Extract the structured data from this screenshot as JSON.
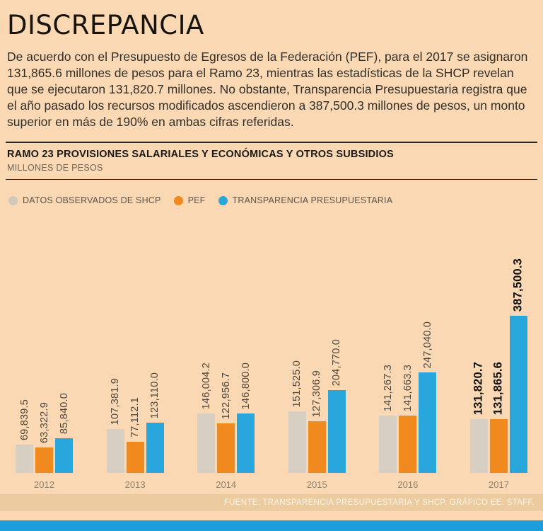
{
  "page": {
    "title": "DISCREPANCIA",
    "intro": "De acuerdo con el Presupuesto de Egresos de la Federación (PEF), para el 2017 se asignaron 131,865.6 millones de pesos para el Ramo 23, mientras las estadísticas de la SHCP revelan que se ejecutaron 131,820.7 millones. No obstante, Transparencia Presupuestaria registra que el año pasado los recursos modificados ascendieron a 387,500.3 millones de pesos, un monto superior en más de 190% en ambas cifras referidas."
  },
  "chart_header": {
    "title": "RAMO 23 PROVISIONES SALARIALES Y ECONÓMICAS Y OTROS SUBSIDIOS",
    "subtitle": "MILLONES DE PESOS"
  },
  "legend": [
    {
      "label": "DATOS OBSERVADOS DE SHCP",
      "color": "#cfc8bb"
    },
    {
      "label": "PEF",
      "color": "#f08a1f"
    },
    {
      "label": "TRANSPARENCIA PRESUPUESTARIA",
      "color": "#29a7dc"
    }
  ],
  "chart_data": {
    "type": "bar",
    "categories": [
      "2012",
      "2013",
      "2014",
      "2015",
      "2016",
      "2017"
    ],
    "series": [
      {
        "name": "DATOS OBSERVADOS DE SHCP",
        "color": "#d6cfc2",
        "values": [
          69839.5,
          107381.9,
          146004.2,
          151525.0,
          141267.3,
          131820.7
        ],
        "labels": [
          "69,839.5",
          "107,381.9",
          "146,004.2",
          "151,525.0",
          "141,267.3",
          "131,820.7"
        ]
      },
      {
        "name": "PEF",
        "color": "#f08a1f",
        "values": [
          63322.9,
          77112.1,
          122956.7,
          127306.9,
          141663.3,
          131865.6
        ],
        "labels": [
          "63,322.9",
          "77,112.1",
          "122,956.7",
          "127,306.9",
          "141,663.3",
          "131,865.6"
        ]
      },
      {
        "name": "TRANSPARENCIA PRESUPUESTARIA",
        "color": "#29a7dc",
        "values": [
          85840.0,
          123110.0,
          146800.0,
          204770.0,
          247040.0,
          387500.3
        ],
        "labels": [
          "85,840.0",
          "123,110.0",
          "146,800.0",
          "204,770.0",
          "247,040.0",
          "387,500.3"
        ]
      }
    ],
    "highlight_category": "2017",
    "ylim": [
      0,
      400000
    ],
    "legend_position": "top",
    "grid": false
  },
  "footer": {
    "source": "FUENTE: TRANSPARENCIA PRESUPUESTARIA Y SHCP. GRÁFICO EE: STAFF."
  }
}
